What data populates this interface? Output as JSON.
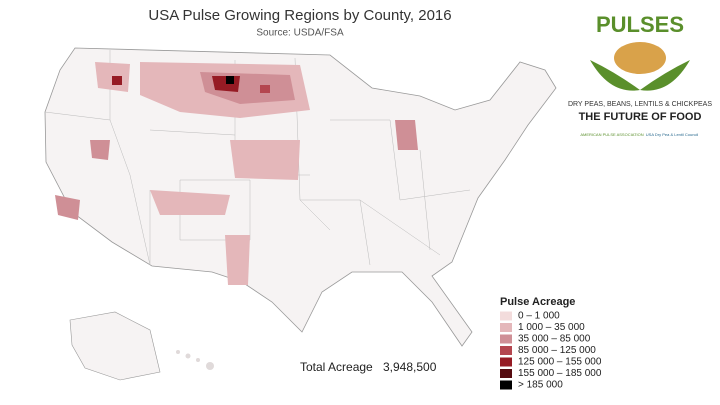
{
  "header": {
    "title": "USA Pulse Growing Regions by County, 2016",
    "source": "Source: USDA/FSA"
  },
  "logo": {
    "name": "PULSES",
    "tagline": "DRY PEAS, BEANS, LENTILS & CHICKPEAS",
    "slogan": "THE FUTURE OF FOOD",
    "partners": [
      "AMERICAN PULSE ASSOCIATION",
      "USA Dry Pea & Lentil Council"
    ]
  },
  "legend": {
    "title": "Pulse Acreage",
    "items": [
      {
        "label": "0 – 1 000",
        "color": "#f3dcdc"
      },
      {
        "label": "1 000 – 35 000",
        "color": "#e4b7ba"
      },
      {
        "label": "35 000 – 85 000",
        "color": "#cf8f96"
      },
      {
        "label": "85 000 – 125 000",
        "color": "#b4464f"
      },
      {
        "label": "125 000 – 155 000",
        "color": "#961b24"
      },
      {
        "label": "155 000 – 185 000",
        "color": "#560b10"
      },
      {
        "label": "> 185 000",
        "color": "#000000"
      }
    ]
  },
  "total": {
    "label": "Total Acreage",
    "value": "3,948,500"
  }
}
